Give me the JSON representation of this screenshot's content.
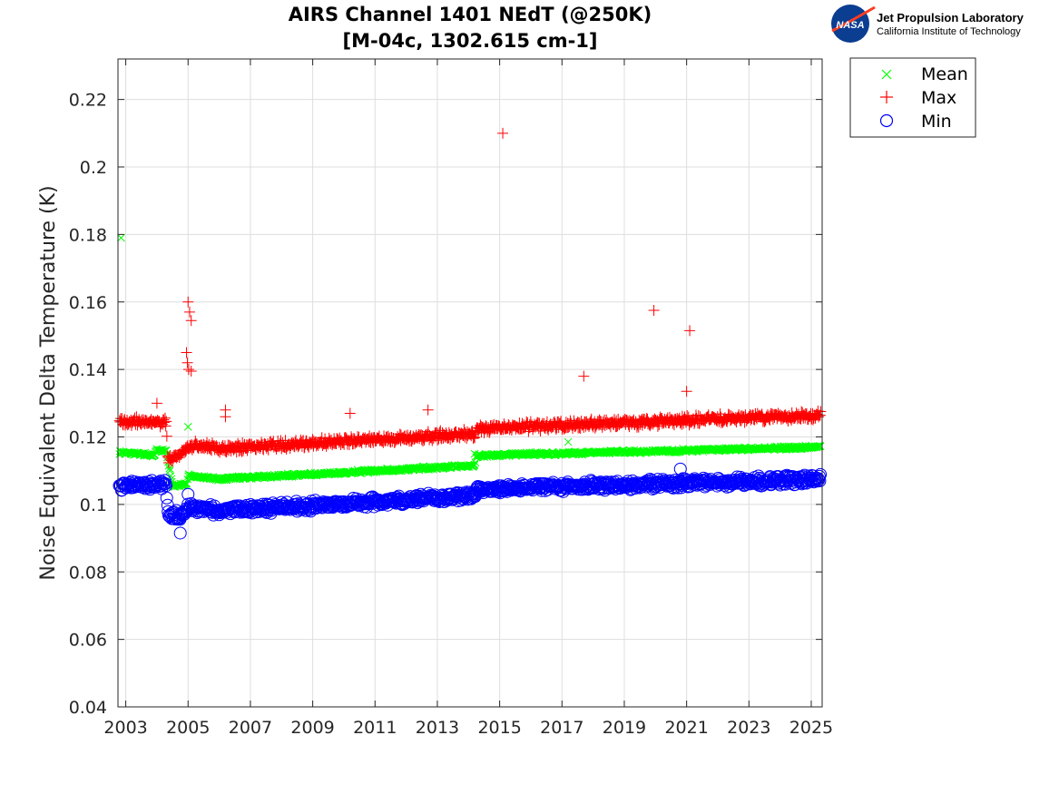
{
  "logo": {
    "badge_text": "NASA",
    "org_name": "Jet Propulsion Laboratory",
    "org_sub": "California Institute of Technology"
  },
  "colors": {
    "mean": "#00ff00",
    "max": "#ff0000",
    "min": "#0000ff",
    "grid": "#dedede",
    "nasa_blue": "#0b3d91",
    "nasa_red": "#fc3d21"
  },
  "chart_data": {
    "type": "scatter",
    "title": "AIRS Channel 1401 NEdT (@250K)",
    "subtitle": "[M-04c, 1302.615 cm-1]",
    "xlabel": "",
    "ylabel": "Noise Equivalent Delta Temperature (K)",
    "xlim": [
      2002.75,
      2025.35
    ],
    "ylim": [
      0.04,
      0.232
    ],
    "xticks": [
      2003,
      2005,
      2007,
      2009,
      2011,
      2013,
      2015,
      2017,
      2019,
      2021,
      2023,
      2025
    ],
    "yticks": [
      0.04,
      0.06,
      0.08,
      0.1,
      0.12,
      0.14,
      0.16,
      0.18,
      0.2,
      0.22
    ],
    "ytick_labels": [
      "0.04",
      "0.06",
      "0.08",
      "0.1",
      "0.12",
      "0.14",
      "0.16",
      "0.18",
      "0.2",
      "0.22"
    ],
    "grid": true,
    "legend_position": "outside top-right",
    "series": [
      {
        "name": "Mean",
        "marker": "x",
        "trend": [
          [
            2002.8,
            0.1155
          ],
          [
            2003.9,
            0.1145
          ],
          [
            2004.0,
            0.1162
          ],
          [
            2004.3,
            0.1158
          ],
          [
            2004.5,
            0.1055
          ],
          [
            2004.95,
            0.106
          ],
          [
            2005.0,
            0.1085
          ],
          [
            2006.0,
            0.1075
          ],
          [
            2014.2,
            0.1115
          ],
          [
            2014.25,
            0.1145
          ],
          [
            2025.3,
            0.117
          ]
        ],
        "outliers": [
          [
            2002.85,
            0.179
          ],
          [
            2005.0,
            0.123
          ],
          [
            2017.2,
            0.1185
          ],
          [
            2014.2,
            0.115
          ]
        ]
      },
      {
        "name": "Max",
        "marker": "+",
        "trend": [
          [
            2002.8,
            0.1245
          ],
          [
            2004.3,
            0.1245
          ],
          [
            2004.35,
            0.113
          ],
          [
            2004.95,
            0.116
          ],
          [
            2005.0,
            0.1175
          ],
          [
            2006.0,
            0.1165
          ],
          [
            2014.2,
            0.121
          ],
          [
            2014.25,
            0.1225
          ],
          [
            2025.3,
            0.1265
          ]
        ],
        "outliers": [
          [
            2015.1,
            0.21
          ],
          [
            2005.0,
            0.16
          ],
          [
            2005.05,
            0.157
          ],
          [
            2005.1,
            0.1545
          ],
          [
            2004.95,
            0.145
          ],
          [
            2004.98,
            0.142
          ],
          [
            2005.02,
            0.14
          ],
          [
            2005.1,
            0.1395
          ],
          [
            2019.95,
            0.1575
          ],
          [
            2021.1,
            0.1515
          ],
          [
            2017.7,
            0.138
          ],
          [
            2006.2,
            0.128
          ],
          [
            2006.2,
            0.126
          ],
          [
            2012.7,
            0.128
          ],
          [
            2004.0,
            0.13
          ],
          [
            2010.2,
            0.127
          ],
          [
            2021.0,
            0.1335
          ]
        ]
      },
      {
        "name": "Min",
        "marker": "o",
        "trend": [
          [
            2002.8,
            0.1055
          ],
          [
            2004.3,
            0.106
          ],
          [
            2004.35,
            0.0965
          ],
          [
            2004.95,
            0.0975
          ],
          [
            2005.0,
            0.0995
          ],
          [
            2006.0,
            0.098
          ],
          [
            2014.2,
            0.1025
          ],
          [
            2014.25,
            0.1045
          ],
          [
            2025.3,
            0.1075
          ]
        ],
        "outliers": [
          [
            2004.75,
            0.0915
          ],
          [
            2020.8,
            0.1105
          ],
          [
            2005.0,
            0.103
          ]
        ]
      }
    ]
  }
}
